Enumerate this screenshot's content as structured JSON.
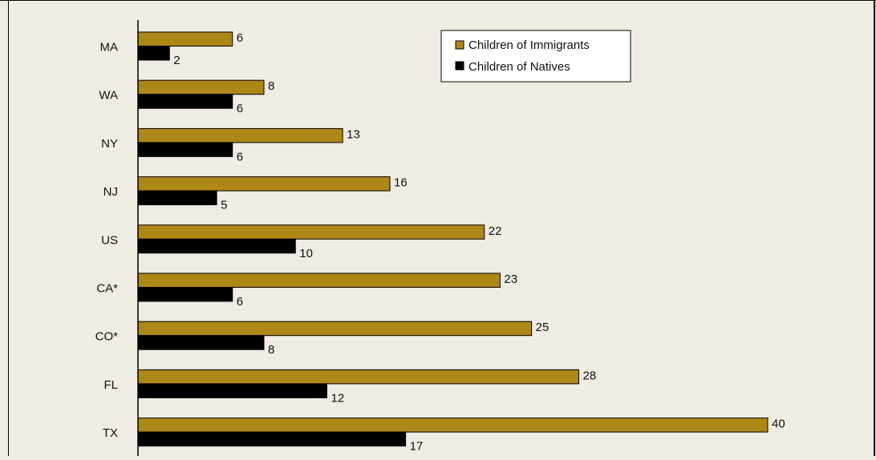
{
  "chart_data": {
    "type": "bar",
    "orientation": "horizontal",
    "categories": [
      "MA",
      "WA",
      "NY",
      "NJ",
      "US",
      "CA*",
      "CO*",
      "FL",
      "TX"
    ],
    "series": [
      {
        "name": "Children of Immigrants",
        "values": [
          6,
          8,
          13,
          16,
          22,
          23,
          25,
          28,
          40
        ],
        "color": "#ae8719"
      },
      {
        "name": "Children of Natives",
        "values": [
          2,
          6,
          6,
          5,
          10,
          6,
          8,
          12,
          17
        ],
        "color": "#000000"
      }
    ],
    "xlim": [
      0,
      40
    ],
    "grid": false,
    "legend_position": "top-right",
    "data_labels": true
  },
  "colors": {
    "background": "#f1ece3",
    "immigrants": "#ae8719",
    "natives": "#000000"
  }
}
